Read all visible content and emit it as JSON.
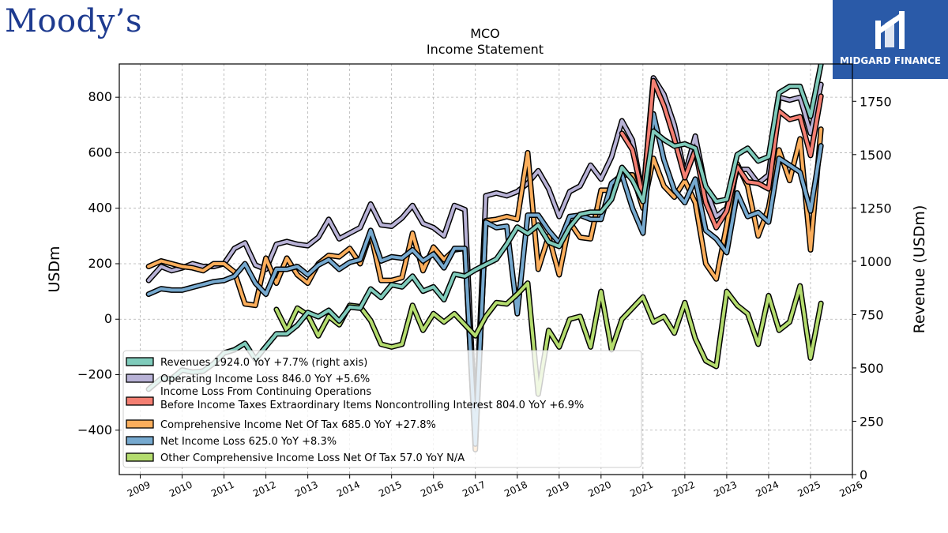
{
  "branding": {
    "left_logo_text": "Moody’s",
    "right_logo_text": "MIDGARD FINANCE"
  },
  "colors": {
    "revenues": "#7fcbbb",
    "operating": "#b8b2d6",
    "pretax": "#f47f72",
    "comprehensive": "#fbae5c",
    "net_income": "#76a9cf",
    "oci": "#b4dc6e"
  },
  "chart_data": {
    "type": "line",
    "title": "MCO",
    "subtitle": "Income Statement",
    "ylabel": "USDm",
    "y2label": "Revenue (USDm)",
    "ylim": [
      -560,
      920
    ],
    "y2lim": [
      0,
      1925
    ],
    "xlim": [
      2008.5,
      2026
    ],
    "yticks": [
      -400,
      -200,
      0,
      200,
      400,
      600,
      800
    ],
    "y2ticks": [
      0,
      250,
      500,
      750,
      1000,
      1250,
      1500,
      1750
    ],
    "xticks": [
      "2009",
      "2010",
      "2011",
      "2012",
      "2013",
      "2014",
      "2015",
      "2016",
      "2017",
      "2018",
      "2019",
      "2020",
      "2021",
      "2022",
      "2023",
      "2024",
      "2025",
      "2026"
    ],
    "grid": true,
    "legend_position": "lower-left",
    "series": [
      {
        "key": "revenues",
        "name": "Revenues  1924.0 YoY +7.7% (right axis)",
        "axis": "right",
        "x": [
          2009.2,
          2009.5,
          2009.75,
          2010.0,
          2010.25,
          2010.5,
          2010.75,
          2011.0,
          2011.25,
          2011.5,
          2011.75,
          2012.0,
          2012.25,
          2012.5,
          2012.75,
          2013.0,
          2013.25,
          2013.5,
          2013.75,
          2014.0,
          2014.25,
          2014.5,
          2014.75,
          2015.0,
          2015.25,
          2015.5,
          2015.75,
          2016.0,
          2016.25,
          2016.5,
          2016.75,
          2017.0,
          2017.25,
          2017.5,
          2017.75,
          2018.0,
          2018.25,
          2018.5,
          2018.75,
          2019.0,
          2019.25,
          2019.5,
          2019.75,
          2020.0,
          2020.25,
          2020.5,
          2020.75,
          2021.0,
          2021.25,
          2021.5,
          2021.75,
          2022.0,
          2022.25,
          2022.5,
          2022.75,
          2023.0,
          2023.25,
          2023.5,
          2023.75,
          2024.0,
          2024.25,
          2024.5,
          2024.75,
          2025.0,
          2025.25
        ],
        "y": [
          400,
          450,
          450,
          490,
          480,
          485,
          520,
          570,
          585,
          615,
          540,
          600,
          660,
          660,
          700,
          760,
          740,
          770,
          720,
          785,
          780,
          870,
          830,
          890,
          880,
          930,
          860,
          880,
          820,
          940,
          930,
          960,
          985,
          1010,
          1080,
          1160,
          1130,
          1170,
          1090,
          1070,
          1160,
          1220,
          1230,
          1230,
          1290,
          1440,
          1380,
          1280,
          1610,
          1570,
          1540,
          1550,
          1530,
          1350,
          1280,
          1290,
          1500,
          1530,
          1470,
          1490,
          1790,
          1820,
          1820,
          1680,
          1924
        ]
      },
      {
        "key": "operating",
        "name": "Operating Income Loss  846.0 YoY +5.6%",
        "axis": "left",
        "x": [
          2009.2,
          2009.5,
          2009.75,
          2010.0,
          2010.25,
          2010.5,
          2010.75,
          2011.0,
          2011.25,
          2011.5,
          2011.75,
          2012.0,
          2012.25,
          2012.5,
          2012.75,
          2013.0,
          2013.25,
          2013.5,
          2013.75,
          2014.0,
          2014.25,
          2014.5,
          2014.75,
          2015.0,
          2015.25,
          2015.5,
          2015.75,
          2016.0,
          2016.25,
          2016.5,
          2016.75,
          2017.0,
          2017.25,
          2017.5,
          2017.75,
          2018.0,
          2018.25,
          2018.5,
          2018.75,
          2019.0,
          2019.25,
          2019.5,
          2019.75,
          2020.0,
          2020.25,
          2020.5,
          2020.75,
          2021.0,
          2021.25,
          2021.5,
          2021.75,
          2022.0,
          2022.25,
          2022.5,
          2022.75,
          2023.0,
          2023.25,
          2023.5,
          2023.75,
          2024.0,
          2024.25,
          2024.5,
          2024.75,
          2025.0,
          2025.25
        ],
        "y": [
          140,
          190,
          175,
          185,
          200,
          190,
          190,
          200,
          255,
          275,
          195,
          180,
          270,
          280,
          270,
          265,
          295,
          360,
          290,
          310,
          330,
          415,
          340,
          335,
          365,
          410,
          345,
          330,
          300,
          410,
          395,
          -400,
          445,
          455,
          445,
          460,
          490,
          535,
          470,
          370,
          460,
          480,
          555,
          505,
          585,
          715,
          645,
          440,
          870,
          810,
          700,
          520,
          660,
          470,
          370,
          400,
          540,
          540,
          490,
          520,
          800,
          790,
          800,
          670,
          846
        ]
      },
      {
        "key": "pretax",
        "name": "Income Loss From Continuing Operations\nBefore Income Taxes Extraordinary Items Noncontrolling Interest  804.0 YoY +6.9%",
        "axis": "left",
        "x": [
          2020.5,
          2020.75,
          2021.0,
          2021.25,
          2021.5,
          2021.75,
          2022.0,
          2022.25,
          2022.5,
          2022.75,
          2023.0,
          2023.25,
          2023.5,
          2023.75,
          2024.0,
          2024.25,
          2024.5,
          2024.75,
          2025.0,
          2025.25
        ],
        "y": [
          670,
          610,
          440,
          860,
          770,
          650,
          510,
          610,
          420,
          330,
          390,
          550,
          495,
          490,
          470,
          750,
          720,
          730,
          590,
          804
        ]
      },
      {
        "key": "comprehensive",
        "name": "Comprehensive Income Net Of Tax  685.0 YoY +27.8%",
        "axis": "left",
        "x": [
          2009.2,
          2009.5,
          2009.75,
          2010.0,
          2010.25,
          2010.5,
          2010.75,
          2011.0,
          2011.25,
          2011.5,
          2011.75,
          2012.0,
          2012.25,
          2012.5,
          2012.75,
          2013.0,
          2013.25,
          2013.5,
          2013.75,
          2014.0,
          2014.25,
          2014.5,
          2014.75,
          2015.0,
          2015.25,
          2015.5,
          2015.75,
          2016.0,
          2016.25,
          2016.5,
          2016.75,
          2017.0,
          2017.25,
          2017.5,
          2017.75,
          2018.0,
          2018.25,
          2018.5,
          2018.75,
          2019.0,
          2019.25,
          2019.5,
          2019.75,
          2020.0,
          2020.25,
          2020.5,
          2020.75,
          2021.0,
          2021.25,
          2021.5,
          2021.75,
          2022.0,
          2022.25,
          2022.5,
          2022.75,
          2023.0,
          2023.25,
          2023.5,
          2023.75,
          2024.0,
          2024.25,
          2024.5,
          2024.75,
          2025.0,
          2025.25
        ],
        "y": [
          190,
          210,
          200,
          190,
          185,
          175,
          200,
          200,
          170,
          55,
          50,
          220,
          130,
          220,
          160,
          130,
          200,
          230,
          225,
          255,
          200,
          310,
          140,
          140,
          150,
          310,
          175,
          260,
          215,
          250,
          255,
          -470,
          355,
          360,
          370,
          360,
          600,
          180,
          300,
          160,
          350,
          295,
          290,
          465,
          465,
          520,
          520,
          400,
          580,
          480,
          440,
          500,
          420,
          200,
          145,
          340,
          560,
          480,
          300,
          400,
          610,
          500,
          650,
          250,
          685
        ]
      },
      {
        "key": "net_income",
        "name": "Net Income Loss  625.0 YoY +8.3%",
        "axis": "left",
        "x": [
          2009.2,
          2009.5,
          2009.75,
          2010.0,
          2010.25,
          2010.5,
          2010.75,
          2011.0,
          2011.25,
          2011.5,
          2011.75,
          2012.0,
          2012.25,
          2012.5,
          2012.75,
          2013.0,
          2013.25,
          2013.5,
          2013.75,
          2014.0,
          2014.25,
          2014.5,
          2014.75,
          2015.0,
          2015.25,
          2015.5,
          2015.75,
          2016.0,
          2016.25,
          2016.5,
          2016.75,
          2017.0,
          2017.25,
          2017.5,
          2017.75,
          2018.0,
          2018.25,
          2018.5,
          2018.75,
          2019.0,
          2019.25,
          2019.5,
          2019.75,
          2020.0,
          2020.25,
          2020.5,
          2020.75,
          2021.0,
          2021.25,
          2021.5,
          2021.75,
          2022.0,
          2022.25,
          2022.5,
          2022.75,
          2023.0,
          2023.25,
          2023.5,
          2023.75,
          2024.0,
          2024.25,
          2024.5,
          2024.75,
          2025.0,
          2025.25
        ],
        "y": [
          90,
          110,
          105,
          105,
          115,
          125,
          135,
          140,
          155,
          200,
          130,
          90,
          180,
          180,
          190,
          160,
          195,
          215,
          180,
          205,
          215,
          320,
          210,
          225,
          220,
          250,
          210,
          235,
          185,
          255,
          255,
          -450,
          350,
          330,
          335,
          20,
          375,
          375,
          320,
          275,
          370,
          375,
          360,
          360,
          490,
          520,
          400,
          310,
          740,
          575,
          465,
          420,
          505,
          320,
          290,
          240,
          455,
          370,
          385,
          350,
          580,
          555,
          530,
          390,
          625
        ]
      },
      {
        "key": "oci",
        "name": "Other Comprehensive Income Loss Net Of Tax  57.0 YoY N/A",
        "axis": "left",
        "x": [
          2012.25,
          2012.5,
          2012.75,
          2013.0,
          2013.25,
          2013.5,
          2013.75,
          2014.0,
          2014.25,
          2014.5,
          2014.75,
          2015.0,
          2015.25,
          2015.5,
          2015.75,
          2016.0,
          2016.25,
          2016.5,
          2016.75,
          2017.0,
          2017.25,
          2017.5,
          2017.75,
          2018.0,
          2018.25,
          2018.5,
          2018.75,
          2019.0,
          2019.25,
          2019.5,
          2019.75,
          2020.0,
          2020.25,
          2020.5,
          2020.75,
          2021.0,
          2021.25,
          2021.5,
          2021.75,
          2022.0,
          2022.25,
          2022.5,
          2022.75,
          2023.0,
          2023.25,
          2023.5,
          2023.75,
          2024.0,
          2024.25,
          2024.5,
          2024.75,
          2025.0,
          2025.25
        ],
        "y": [
          35,
          -40,
          40,
          15,
          -60,
          10,
          -20,
          50,
          45,
          -5,
          -90,
          -100,
          -90,
          50,
          -40,
          20,
          -10,
          20,
          -20,
          -60,
          10,
          60,
          55,
          90,
          130,
          -270,
          -40,
          -100,
          0,
          10,
          -100,
          100,
          -110,
          0,
          40,
          80,
          -10,
          10,
          -50,
          60,
          -70,
          -150,
          -170,
          100,
          50,
          20,
          -90,
          85,
          -40,
          -10,
          120,
          -140,
          57
        ]
      }
    ]
  }
}
